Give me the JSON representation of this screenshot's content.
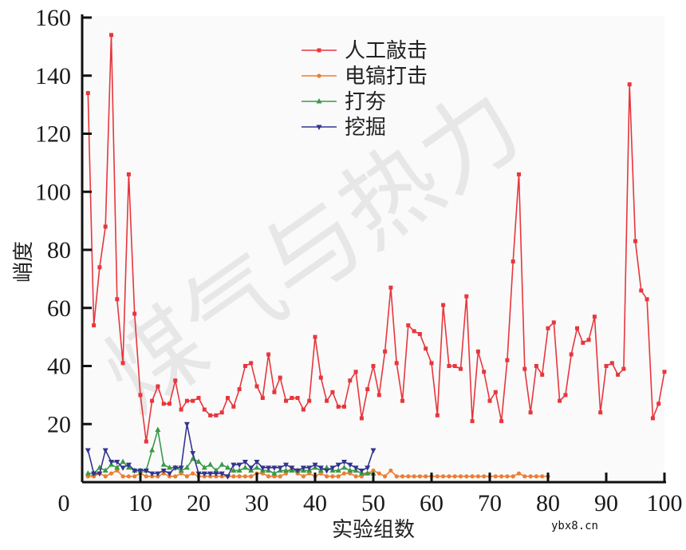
{
  "chart_data": {
    "type": "line",
    "title": "",
    "xlabel": "实验组数",
    "ylabel": "峭度",
    "xlim": [
      0,
      100
    ],
    "ylim": [
      0,
      160
    ],
    "xticks": [
      0,
      10,
      20,
      30,
      40,
      50,
      60,
      70,
      80,
      90,
      100
    ],
    "yticks": [
      20,
      40,
      60,
      80,
      100,
      120,
      140,
      160
    ],
    "grid": false,
    "legend_position": "upper center",
    "series": [
      {
        "name": "人工敲击",
        "color": "#e8363c",
        "marker": "square",
        "x": [
          1,
          2,
          3,
          4,
          5,
          6,
          7,
          8,
          9,
          10,
          11,
          12,
          13,
          14,
          15,
          16,
          17,
          18,
          19,
          20,
          21,
          22,
          23,
          24,
          25,
          26,
          27,
          28,
          29,
          30,
          31,
          32,
          33,
          34,
          35,
          36,
          37,
          38,
          39,
          40,
          41,
          42,
          43,
          44,
          45,
          46,
          47,
          48,
          49,
          50,
          51,
          52,
          53,
          54,
          55,
          56,
          57,
          58,
          59,
          60,
          61,
          62,
          63,
          64,
          65,
          66,
          67,
          68,
          69,
          70,
          71,
          72,
          73,
          74,
          75,
          76,
          77,
          78,
          79,
          80,
          81,
          82,
          83,
          84,
          85,
          86,
          87,
          88,
          89,
          90,
          91,
          92,
          93,
          94,
          95,
          96,
          97,
          98,
          99,
          100
        ],
        "values": [
          134,
          54,
          74,
          88,
          154,
          63,
          41,
          106,
          58,
          30,
          14,
          28,
          33,
          27,
          27,
          35,
          25,
          28,
          28,
          29,
          25,
          23,
          23,
          24,
          29,
          26,
          32,
          40,
          41,
          33,
          29,
          44,
          31,
          36,
          28,
          29,
          29,
          25,
          28,
          50,
          36,
          28,
          31,
          26,
          26,
          35,
          38,
          22,
          32,
          40,
          30,
          45,
          67,
          41,
          28,
          54,
          52,
          51,
          46,
          41,
          23,
          61,
          40,
          40,
          39,
          64,
          21,
          45,
          38,
          28,
          31,
          21,
          42,
          76,
          106,
          39,
          24,
          40,
          37,
          53,
          55,
          28,
          30,
          44,
          53,
          48,
          49,
          57,
          24,
          40,
          41,
          37,
          39,
          137,
          83,
          66,
          63,
          22,
          27,
          38
        ]
      },
      {
        "name": "电镐打击",
        "color": "#ee7d32",
        "marker": "circle",
        "x": [
          1,
          2,
          3,
          4,
          5,
          6,
          7,
          8,
          9,
          10,
          11,
          12,
          13,
          14,
          15,
          16,
          17,
          18,
          19,
          20,
          21,
          22,
          23,
          24,
          25,
          26,
          27,
          28,
          29,
          30,
          31,
          32,
          33,
          34,
          35,
          36,
          37,
          38,
          39,
          40,
          41,
          42,
          43,
          44,
          45,
          46,
          47,
          48,
          49,
          50,
          51,
          52,
          53,
          54,
          55,
          56,
          57,
          58,
          59,
          60,
          61,
          62,
          63,
          64,
          65,
          66,
          67,
          68,
          69,
          70,
          71,
          72,
          73,
          74,
          75,
          76,
          77,
          78,
          79,
          80
        ],
        "values": [
          2,
          2,
          3,
          2,
          3,
          4,
          2,
          2,
          2,
          3,
          2,
          2,
          2,
          3,
          2,
          2,
          3,
          2,
          3,
          2,
          2,
          2,
          2,
          2,
          2,
          2,
          2,
          2,
          2,
          3,
          3,
          2,
          2,
          2,
          3,
          5,
          3,
          2,
          3,
          2,
          3,
          2,
          2,
          2,
          3,
          3,
          2,
          2,
          3,
          4,
          3,
          2,
          4,
          2,
          2,
          2,
          2,
          2,
          2,
          2,
          2,
          2,
          2,
          2,
          2,
          2,
          2,
          2,
          2,
          2,
          2,
          2,
          2,
          2,
          3,
          2,
          2,
          2,
          2,
          2
        ]
      },
      {
        "name": "打夯",
        "color": "#3a9a47",
        "marker": "triangle-up",
        "x": [
          1,
          2,
          3,
          4,
          5,
          6,
          7,
          8,
          9,
          10,
          11,
          12,
          13,
          14,
          15,
          16,
          17,
          18,
          19,
          20,
          21,
          22,
          23,
          24,
          25,
          26,
          27,
          28,
          29,
          30,
          31,
          32,
          33,
          34,
          35,
          36,
          37,
          38,
          39,
          40,
          41,
          42,
          43,
          44,
          45,
          46,
          47,
          48,
          49,
          50
        ],
        "values": [
          3,
          3,
          5,
          4,
          6,
          5,
          7,
          5,
          4,
          4,
          4,
          11,
          18,
          6,
          5,
          5,
          4,
          5,
          8,
          7,
          5,
          6,
          4,
          6,
          5,
          4,
          4,
          5,
          4,
          5,
          4,
          4,
          3,
          4,
          4,
          4,
          4,
          4,
          4,
          5,
          4,
          5,
          4,
          4,
          5,
          4,
          4,
          3,
          3,
          3
        ]
      },
      {
        "name": "挖掘",
        "color": "#33348f",
        "marker": "triangle-down",
        "x": [
          1,
          2,
          3,
          4,
          5,
          6,
          7,
          8,
          9,
          10,
          11,
          12,
          13,
          14,
          15,
          16,
          17,
          18,
          19,
          20,
          21,
          22,
          23,
          24,
          25,
          26,
          27,
          28,
          29,
          30,
          31,
          32,
          33,
          34,
          35,
          36,
          37,
          38,
          39,
          40,
          41,
          42,
          43,
          44,
          45,
          46,
          47,
          48,
          49,
          50
        ],
        "values": [
          11,
          3,
          3,
          11,
          7,
          7,
          5,
          6,
          4,
          4,
          4,
          3,
          3,
          4,
          3,
          5,
          5,
          20,
          10,
          3,
          3,
          3,
          3,
          3,
          2,
          6,
          6,
          7,
          5,
          7,
          5,
          5,
          5,
          5,
          6,
          5,
          4,
          5,
          5,
          6,
          5,
          4,
          5,
          6,
          7,
          6,
          5,
          4,
          5,
          11
        ]
      }
    ]
  },
  "legend": {
    "items": [
      {
        "label": "人工敲击",
        "color": "#e8363c"
      },
      {
        "label": "电镐打击",
        "color": "#ee7d32"
      },
      {
        "label": "打夯",
        "color": "#3a9a47"
      },
      {
        "label": "挖掘",
        "color": "#33348f"
      }
    ]
  },
  "axes": {
    "xlabel": "实验组数",
    "ylabel": "峭度",
    "xtick_labels": [
      "0",
      "10",
      "20",
      "30",
      "40",
      "50",
      "60",
      "70",
      "80",
      "90",
      "100"
    ],
    "ytick_labels": [
      "20",
      "40",
      "60",
      "80",
      "100",
      "120",
      "140",
      "160"
    ]
  },
  "watermark": {
    "site": "ybx8.cn",
    "text": "煤气与热力"
  }
}
